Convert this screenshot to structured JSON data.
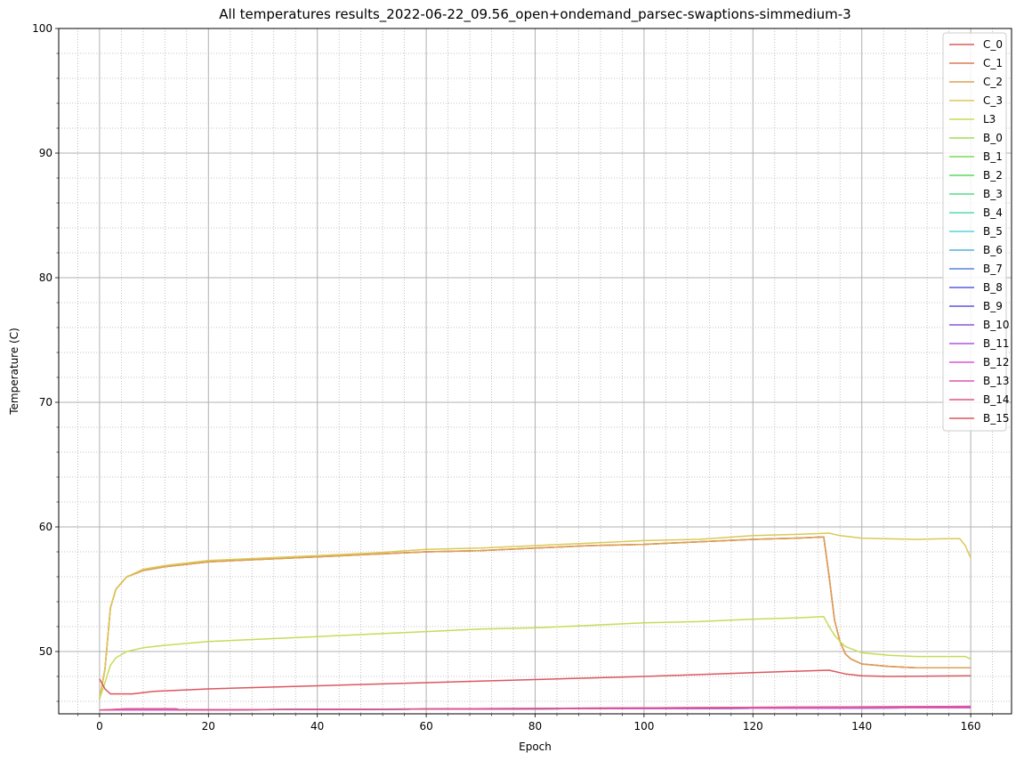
{
  "chart_data": {
    "type": "line",
    "title": "All temperatures results_2022-06-22_09.56_open+ondemand_parsec-swaptions-simmedium-3",
    "xlabel": "Epoch",
    "ylabel": "Temperature (C)",
    "xlim": [
      -7.5,
      167.5
    ],
    "ylim": [
      45,
      100
    ],
    "x_ticks": [
      0,
      20,
      40,
      60,
      80,
      100,
      120,
      140,
      160
    ],
    "y_ticks": [
      50,
      60,
      70,
      80,
      90,
      100
    ],
    "grid": true,
    "minor_grid": true,
    "legend_position": "top-right",
    "series": [
      {
        "name": "C_0",
        "color": "#db5f57",
        "points": [
          [
            0,
            46.2
          ],
          [
            1,
            48.6
          ],
          [
            2,
            53.5
          ],
          [
            3,
            55.0
          ],
          [
            5,
            56.0
          ],
          [
            8,
            56.5
          ],
          [
            12,
            56.8
          ],
          [
            20,
            57.2
          ],
          [
            30,
            57.4
          ],
          [
            40,
            57.6
          ],
          [
            50,
            57.8
          ],
          [
            60,
            58.0
          ],
          [
            70,
            58.1
          ],
          [
            80,
            58.3
          ],
          [
            90,
            58.5
          ],
          [
            100,
            58.6
          ],
          [
            110,
            58.8
          ],
          [
            120,
            59.0
          ],
          [
            128,
            59.1
          ],
          [
            133,
            59.2
          ],
          [
            134,
            56.0
          ],
          [
            135,
            52.5
          ],
          [
            136,
            50.8
          ],
          [
            137,
            49.8
          ],
          [
            138,
            49.4
          ],
          [
            140,
            49.0
          ],
          [
            145,
            48.8
          ],
          [
            150,
            48.7
          ],
          [
            160,
            48.7
          ]
        ]
      },
      {
        "name": "C_1",
        "color": "#db7c57",
        "points": [
          [
            0,
            46.2
          ],
          [
            1,
            48.6
          ],
          [
            2,
            53.5
          ],
          [
            3,
            55.0
          ],
          [
            5,
            56.0
          ],
          [
            8,
            56.5
          ],
          [
            12,
            56.8
          ],
          [
            20,
            57.2
          ],
          [
            30,
            57.4
          ],
          [
            40,
            57.6
          ],
          [
            50,
            57.8
          ],
          [
            60,
            58.0
          ],
          [
            70,
            58.1
          ],
          [
            80,
            58.3
          ],
          [
            90,
            58.5
          ],
          [
            100,
            58.6
          ],
          [
            110,
            58.8
          ],
          [
            120,
            59.0
          ],
          [
            128,
            59.1
          ],
          [
            133,
            59.2
          ],
          [
            134,
            56.0
          ],
          [
            135,
            52.5
          ],
          [
            136,
            50.8
          ],
          [
            137,
            49.8
          ],
          [
            138,
            49.4
          ],
          [
            140,
            49.0
          ],
          [
            145,
            48.8
          ],
          [
            150,
            48.7
          ],
          [
            160,
            48.7
          ]
        ]
      },
      {
        "name": "C_2",
        "color": "#dba157",
        "points": [
          [
            0,
            46.2
          ],
          [
            1,
            48.6
          ],
          [
            2,
            53.5
          ],
          [
            3,
            55.0
          ],
          [
            5,
            56.0
          ],
          [
            8,
            56.5
          ],
          [
            12,
            56.8
          ],
          [
            20,
            57.2
          ],
          [
            30,
            57.4
          ],
          [
            40,
            57.6
          ],
          [
            50,
            57.8
          ],
          [
            60,
            58.0
          ],
          [
            70,
            58.1
          ],
          [
            80,
            58.3
          ],
          [
            90,
            58.5
          ],
          [
            100,
            58.6
          ],
          [
            110,
            58.8
          ],
          [
            120,
            59.0
          ],
          [
            128,
            59.1
          ],
          [
            133,
            59.2
          ],
          [
            134,
            56.0
          ],
          [
            135,
            52.5
          ],
          [
            136,
            50.8
          ],
          [
            137,
            49.8
          ],
          [
            138,
            49.4
          ],
          [
            140,
            49.0
          ],
          [
            145,
            48.8
          ],
          [
            150,
            48.7
          ],
          [
            160,
            48.7
          ]
        ]
      },
      {
        "name": "C_3",
        "color": "#dbc957",
        "points": [
          [
            0,
            46.2
          ],
          [
            1,
            48.6
          ],
          [
            2,
            53.5
          ],
          [
            3,
            55.0
          ],
          [
            5,
            56.0
          ],
          [
            8,
            56.6
          ],
          [
            12,
            56.9
          ],
          [
            20,
            57.3
          ],
          [
            30,
            57.5
          ],
          [
            40,
            57.7
          ],
          [
            50,
            57.9
          ],
          [
            60,
            58.2
          ],
          [
            70,
            58.3
          ],
          [
            80,
            58.5
          ],
          [
            90,
            58.7
          ],
          [
            100,
            58.9
          ],
          [
            110,
            59.0
          ],
          [
            120,
            59.3
          ],
          [
            128,
            59.4
          ],
          [
            134,
            59.5
          ],
          [
            136,
            59.3
          ],
          [
            140,
            59.1
          ],
          [
            150,
            59.0
          ],
          [
            155,
            59.05
          ],
          [
            158,
            59.05
          ],
          [
            159,
            58.5
          ],
          [
            160,
            57.5
          ]
        ]
      },
      {
        "name": "L3",
        "color": "#c7db57",
        "points": [
          [
            0,
            46.2
          ],
          [
            1,
            47.5
          ],
          [
            2,
            48.9
          ],
          [
            3,
            49.5
          ],
          [
            5,
            50.0
          ],
          [
            8,
            50.3
          ],
          [
            12,
            50.5
          ],
          [
            20,
            50.8
          ],
          [
            30,
            51.0
          ],
          [
            40,
            51.2
          ],
          [
            50,
            51.4
          ],
          [
            60,
            51.6
          ],
          [
            70,
            51.8
          ],
          [
            80,
            51.9
          ],
          [
            90,
            52.1
          ],
          [
            100,
            52.3
          ],
          [
            110,
            52.4
          ],
          [
            120,
            52.6
          ],
          [
            128,
            52.7
          ],
          [
            133,
            52.8
          ],
          [
            134,
            52.0
          ],
          [
            135,
            51.3
          ],
          [
            136,
            50.8
          ],
          [
            137,
            50.4
          ],
          [
            140,
            49.9
          ],
          [
            145,
            49.7
          ],
          [
            150,
            49.6
          ],
          [
            159,
            49.6
          ],
          [
            160,
            49.4
          ]
        ]
      },
      {
        "name": "B_0",
        "color": "#a3db57",
        "points": [
          [
            0,
            45.3
          ],
          [
            160,
            45.5
          ]
        ]
      },
      {
        "name": "B_1",
        "color": "#7cdb57",
        "points": [
          [
            0,
            45.3
          ],
          [
            160,
            45.5
          ]
        ]
      },
      {
        "name": "B_2",
        "color": "#57db5f",
        "points": [
          [
            0,
            45.3
          ],
          [
            160,
            45.5
          ]
        ]
      },
      {
        "name": "B_3",
        "color": "#57db87",
        "points": [
          [
            0,
            45.3
          ],
          [
            160,
            45.5
          ]
        ]
      },
      {
        "name": "B_4",
        "color": "#57dbb0",
        "points": [
          [
            0,
            45.3
          ],
          [
            160,
            45.5
          ]
        ]
      },
      {
        "name": "B_5",
        "color": "#57d3db",
        "points": [
          [
            0,
            45.3
          ],
          [
            160,
            45.5
          ]
        ]
      },
      {
        "name": "B_6",
        "color": "#57b0db",
        "points": [
          [
            0,
            45.3
          ],
          [
            160,
            45.5
          ]
        ]
      },
      {
        "name": "B_7",
        "color": "#5787db",
        "points": [
          [
            0,
            45.3
          ],
          [
            160,
            45.5
          ]
        ]
      },
      {
        "name": "B_8",
        "color": "#575fdb",
        "points": [
          [
            0,
            45.3
          ],
          [
            160,
            45.5
          ]
        ]
      },
      {
        "name": "B_9",
        "color": "#5f57db",
        "points": [
          [
            0,
            45.3
          ],
          [
            160,
            45.5
          ]
        ]
      },
      {
        "name": "B_10",
        "color": "#8757db",
        "points": [
          [
            0,
            45.3
          ],
          [
            160,
            45.5
          ]
        ]
      },
      {
        "name": "B_11",
        "color": "#b057db",
        "points": [
          [
            0,
            45.3
          ],
          [
            160,
            45.5
          ]
        ]
      },
      {
        "name": "B_12",
        "color": "#db57d3",
        "points": [
          [
            0,
            45.3
          ],
          [
            160,
            45.5
          ]
        ]
      },
      {
        "name": "B_13",
        "color": "#db57b0",
        "points": [
          [
            0,
            45.3
          ],
          [
            5,
            45.4
          ],
          [
            14,
            45.4
          ],
          [
            15,
            45.3
          ],
          [
            160,
            45.6
          ]
        ]
      },
      {
        "name": "B_14",
        "color": "#db5787",
        "points": [
          [
            0,
            45.3
          ],
          [
            5,
            45.4
          ],
          [
            14,
            45.4
          ],
          [
            15,
            45.3
          ],
          [
            160,
            45.6
          ]
        ]
      },
      {
        "name": "B_15",
        "color": "#db575f",
        "points": [
          [
            0,
            47.8
          ],
          [
            1,
            47.0
          ],
          [
            2,
            46.6
          ],
          [
            6,
            46.6
          ],
          [
            10,
            46.8
          ],
          [
            15,
            46.9
          ],
          [
            20,
            47.0
          ],
          [
            40,
            47.25
          ],
          [
            60,
            47.5
          ],
          [
            80,
            47.75
          ],
          [
            100,
            48.0
          ],
          [
            120,
            48.3
          ],
          [
            130,
            48.45
          ],
          [
            134,
            48.5
          ],
          [
            137,
            48.2
          ],
          [
            140,
            48.05
          ],
          [
            145,
            48.0
          ],
          [
            160,
            48.05
          ]
        ]
      }
    ]
  }
}
